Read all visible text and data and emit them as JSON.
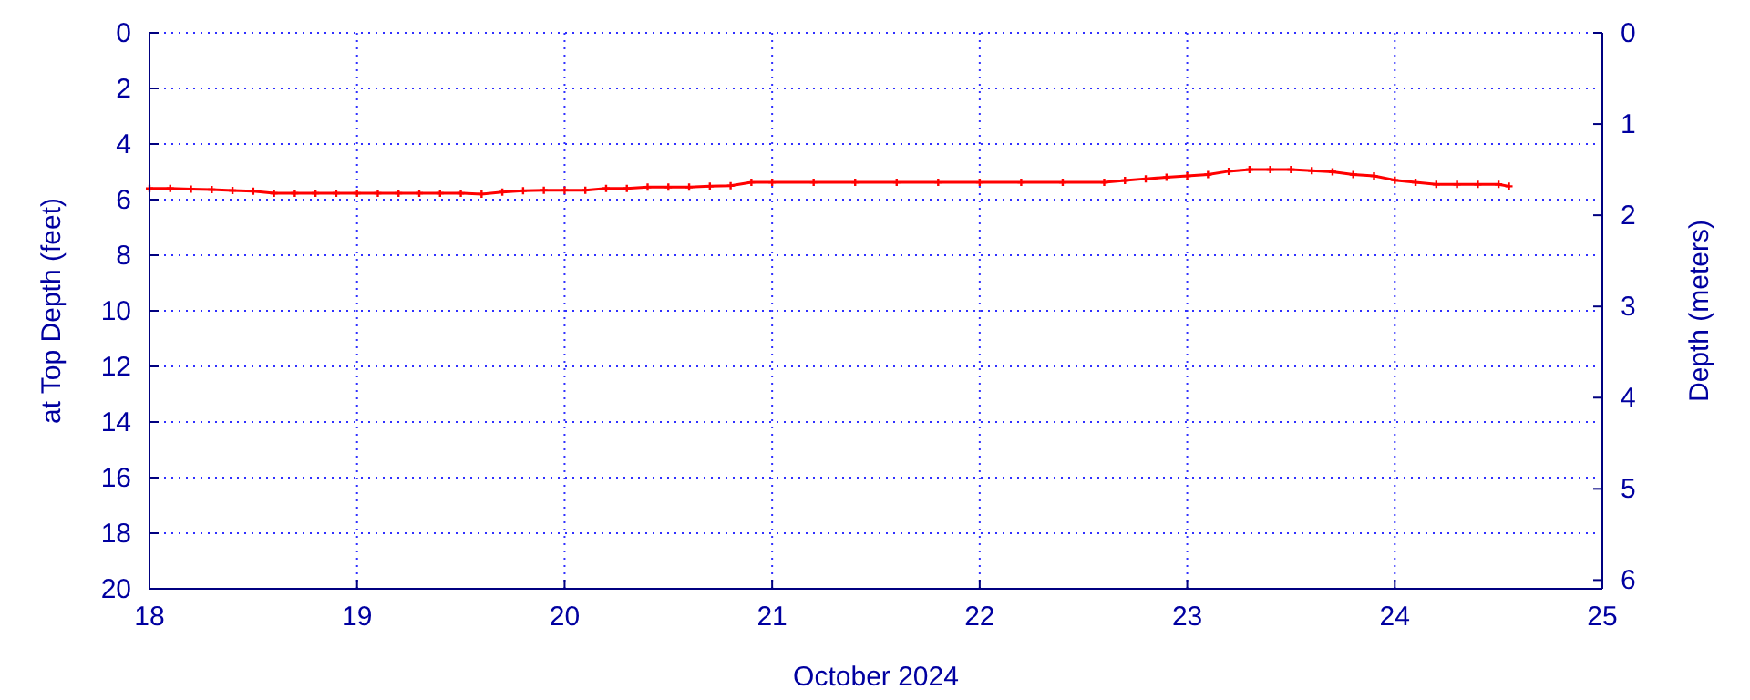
{
  "chart_data": {
    "type": "line",
    "xlabel": "October 2024",
    "ylabel": "at Top Depth (feet)",
    "y2label": "Depth (meters)",
    "x": [
      18.0,
      18.1,
      18.2,
      18.3,
      18.4,
      18.5,
      18.6,
      18.7,
      18.8,
      18.9,
      19.0,
      19.1,
      19.2,
      19.3,
      19.4,
      19.5,
      19.6,
      19.7,
      19.8,
      19.9,
      20.0,
      20.1,
      20.2,
      20.3,
      20.4,
      20.5,
      20.6,
      20.7,
      20.8,
      20.9,
      21.0,
      21.2,
      21.4,
      21.6,
      21.8,
      22.0,
      22.2,
      22.4,
      22.6,
      22.7,
      22.8,
      22.9,
      23.0,
      23.1,
      23.2,
      23.3,
      23.4,
      23.5,
      23.6,
      23.7,
      23.8,
      23.9,
      24.0,
      24.1,
      24.2,
      24.3,
      24.4,
      24.5,
      24.55
    ],
    "series": [
      {
        "color": "#ff0000",
        "values": [
          5.6,
          5.6,
          5.62,
          5.64,
          5.67,
          5.7,
          5.77,
          5.77,
          5.77,
          5.77,
          5.77,
          5.77,
          5.77,
          5.77,
          5.77,
          5.77,
          5.8,
          5.73,
          5.68,
          5.66,
          5.66,
          5.66,
          5.6,
          5.6,
          5.55,
          5.55,
          5.55,
          5.52,
          5.5,
          5.38,
          5.38,
          5.38,
          5.38,
          5.38,
          5.38,
          5.38,
          5.38,
          5.38,
          5.38,
          5.31,
          5.25,
          5.2,
          5.15,
          5.1,
          4.98,
          4.92,
          4.92,
          4.92,
          4.96,
          5.0,
          5.1,
          5.15,
          5.3,
          5.38,
          5.45,
          5.45,
          5.45,
          5.45,
          5.52
        ]
      }
    ],
    "xlim": [
      18,
      25
    ],
    "xticks": [
      18,
      19,
      20,
      21,
      22,
      23,
      24,
      25
    ],
    "ylim": [
      20,
      0
    ],
    "yticks": [
      0,
      2,
      4,
      6,
      8,
      10,
      12,
      14,
      16,
      18,
      20
    ],
    "y2lim": [
      6.096,
      0
    ],
    "y2ticks": [
      0,
      1,
      2,
      3,
      4,
      5,
      6
    ],
    "grid": true,
    "marker": "cross",
    "line_style": "solid"
  }
}
